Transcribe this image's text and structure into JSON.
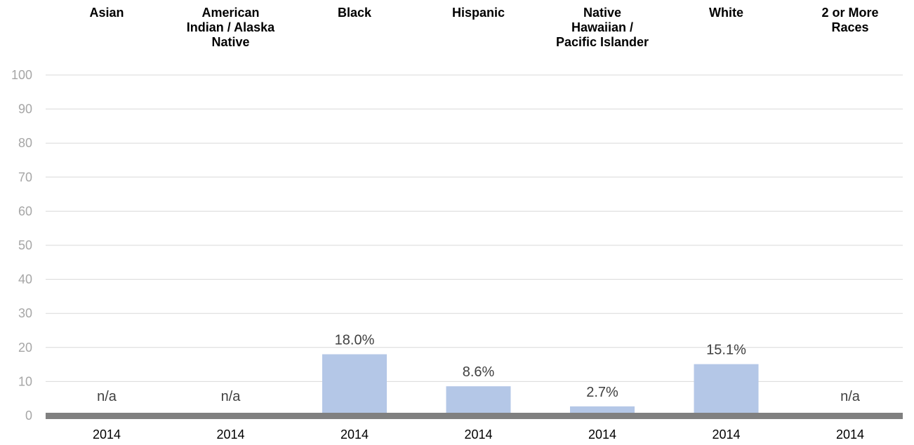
{
  "chart_data": {
    "type": "bar",
    "categories": [
      "Asian",
      "American Indian / Alaska Native",
      "Black",
      "Hispanic",
      "Native Hawaiian / Pacific Islander",
      "White",
      "2 or More Races"
    ],
    "category_label_lines": [
      [
        "Asian"
      ],
      [
        "American",
        "Indian / Alaska",
        "Native"
      ],
      [
        "Black"
      ],
      [
        "Hispanic"
      ],
      [
        "Native",
        "Hawaiian /",
        "Pacific Islander"
      ],
      [
        "White"
      ],
      [
        "2 or More",
        "Races"
      ]
    ],
    "x_tick_labels": [
      "2014",
      "2014",
      "2014",
      "2014",
      "2014",
      "2014",
      "2014"
    ],
    "values": [
      null,
      null,
      18.0,
      8.6,
      2.7,
      15.1,
      null
    ],
    "data_labels": [
      "n/a",
      "n/a",
      "18.0%",
      "8.6%",
      "2.7%",
      "15.1%",
      "n/a"
    ],
    "yticks": [
      0,
      10,
      20,
      30,
      40,
      50,
      60,
      70,
      80,
      90,
      100
    ],
    "ylim": [
      0,
      100
    ],
    "grid": true,
    "bar_color": "#b4c7e7",
    "baseline_color": "#808080",
    "grid_color": "#d9d9d9"
  }
}
